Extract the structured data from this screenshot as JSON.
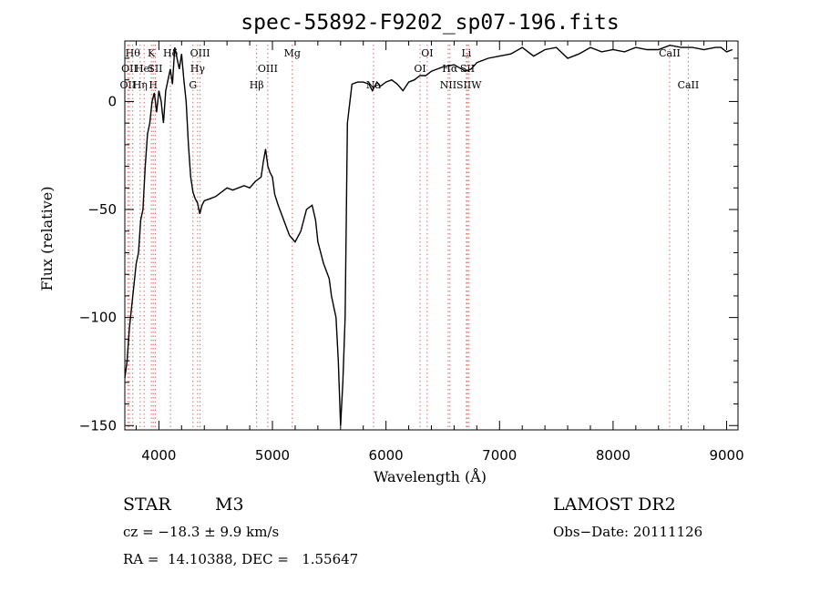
{
  "chart_data": {
    "type": "line",
    "title": "spec-55892-F9202_sp07-196.fits",
    "xlabel": "Wavelength (Å)",
    "ylabel": "Flux (relative)",
    "xlim": [
      3700,
      9100
    ],
    "ylim": [
      -152,
      28
    ],
    "xticks": [
      4000,
      5000,
      6000,
      7000,
      8000,
      9000
    ],
    "yticks": [
      0,
      -50,
      -100,
      -150
    ],
    "grid": false,
    "series": [
      {
        "x": [
          3700,
          3720,
          3740,
          3760,
          3780,
          3800,
          3820,
          3840,
          3860,
          3880,
          3900,
          3920,
          3940,
          3960,
          3980,
          4000,
          4020,
          4040,
          4060,
          4080,
          4100,
          4120,
          4140,
          4160,
          4180,
          4200,
          4220,
          4240,
          4260,
          4280,
          4300,
          4320,
          4340,
          4360,
          4380,
          4400,
          4450,
          4500,
          4550,
          4600,
          4650,
          4700,
          4750,
          4800,
          4850,
          4900,
          4920,
          4940,
          4960,
          4980,
          5000,
          5020,
          5050,
          5100,
          5150,
          5200,
          5250,
          5300,
          5350,
          5380,
          5400,
          5450,
          5500,
          5520,
          5540,
          5560,
          5580,
          5600,
          5620,
          5640,
          5660,
          5700,
          5750,
          5800,
          5850,
          5880,
          5900,
          5920,
          5950,
          6000,
          6050,
          6100,
          6150,
          6200,
          6250,
          6300,
          6350,
          6400,
          6500,
          6600,
          6700,
          6750,
          6800,
          6900,
          7000,
          7100,
          7200,
          7300,
          7400,
          7500,
          7600,
          7700,
          7800,
          7900,
          8000,
          8100,
          8200,
          8300,
          8400,
          8500,
          8600,
          8700,
          8800,
          8900,
          8950,
          9000,
          9050
        ],
        "y": [
          -128,
          -120,
          -105,
          -95,
          -85,
          -75,
          -70,
          -55,
          -50,
          -30,
          -15,
          -10,
          0,
          4,
          -5,
          5,
          0,
          -10,
          5,
          10,
          15,
          8,
          25,
          20,
          15,
          22,
          10,
          0,
          -20,
          -35,
          -42,
          -45,
          -47,
          -52,
          -48,
          -46,
          -45,
          -44,
          -42,
          -40,
          -41,
          -40,
          -39,
          -40,
          -37,
          -35,
          -28,
          -22,
          -30,
          -33,
          -35,
          -43,
          -48,
          -55,
          -62,
          -65,
          -60,
          -50,
          -48,
          -55,
          -65,
          -75,
          -82,
          -90,
          -95,
          -100,
          -120,
          -150,
          -130,
          -100,
          -10,
          8,
          9,
          9,
          8,
          5,
          7,
          9,
          7,
          9,
          10,
          8,
          5,
          9,
          10,
          12,
          12,
          14,
          16,
          17,
          14,
          15,
          18,
          20,
          21,
          22,
          25,
          21,
          24,
          25,
          20,
          22,
          25,
          23,
          24,
          23,
          25,
          24,
          24,
          26,
          25,
          25,
          24,
          25,
          25,
          23,
          24
        ]
      }
    ],
    "line_markers": [
      {
        "wave": 3727,
        "label": "OII",
        "row": 2
      },
      {
        "wave": 3740,
        "label": "OII",
        "row": 1
      },
      {
        "wave": 3770,
        "label": "Hθ",
        "row": 0
      },
      {
        "wave": 3835,
        "label": "Hη",
        "row": 2
      },
      {
        "wave": 3870,
        "label": "HeI",
        "row": 1
      },
      {
        "wave": 3934,
        "label": "K",
        "row": 0
      },
      {
        "wave": 3950,
        "label": "H",
        "row": 2
      },
      {
        "wave": 3968,
        "label": "SII",
        "row": 1
      },
      {
        "wave": 4102,
        "label": "Hδ",
        "row": 0
      },
      {
        "wave": 4300,
        "label": "G",
        "row": 2
      },
      {
        "wave": 4341,
        "label": "Hγ",
        "row": 1
      },
      {
        "wave": 4363,
        "label": "OIII",
        "row": 0
      },
      {
        "wave": 4861,
        "label": "Hβ",
        "row": 2
      },
      {
        "wave": 4959,
        "label": "OIII",
        "row": 1
      },
      {
        "wave": 5175,
        "label": "Mg",
        "row": 0
      },
      {
        "wave": 5890,
        "label": "Na",
        "row": 2
      },
      {
        "wave": 6300,
        "label": "OI",
        "row": 1
      },
      {
        "wave": 6363,
        "label": "OI",
        "row": 0
      },
      {
        "wave": 6548,
        "label": "NII",
        "row": 2
      },
      {
        "wave": 6563,
        "label": "Hα",
        "row": 1
      },
      {
        "wave": 6708,
        "label": "Li",
        "row": 0
      },
      {
        "wave": 6717,
        "label": "SII",
        "row": 1
      },
      {
        "wave": 6731,
        "label": "SIIW",
        "row": 2
      },
      {
        "wave": 8498,
        "label": "CaII",
        "row": 0
      },
      {
        "wave": 8662,
        "label": "CaII",
        "row": 2
      }
    ]
  },
  "info": {
    "class_label": "STAR",
    "subclass": "M3",
    "survey": "LAMOST DR2",
    "cz": "cz = −18.3 ± 9.9 km/s",
    "obs_date": "Obs−Date: 20111126",
    "radec": "RA =  14.10388, DEC =   1.55647"
  }
}
